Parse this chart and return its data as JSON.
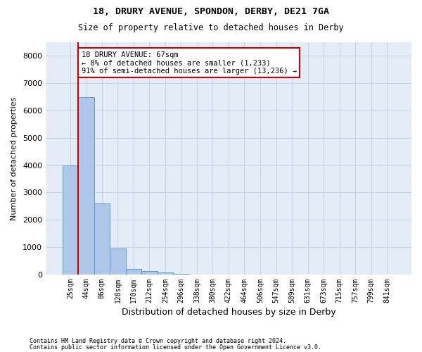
{
  "title1": "18, DRURY AVENUE, SPONDON, DERBY, DE21 7GA",
  "title2": "Size of property relative to detached houses in Derby",
  "xlabel": "Distribution of detached houses by size in Derby",
  "ylabel": "Number of detached properties",
  "footer1": "Contains HM Land Registry data © Crown copyright and database right 2024.",
  "footer2": "Contains public sector information licensed under the Open Government Licence v3.0.",
  "bin_labels": [
    "25sqm",
    "44sqm",
    "86sqm",
    "128sqm",
    "170sqm",
    "212sqm",
    "254sqm",
    "296sqm",
    "338sqm",
    "380sqm",
    "422sqm",
    "464sqm",
    "506sqm",
    "547sqm",
    "589sqm",
    "631sqm",
    "673sqm",
    "715sqm",
    "757sqm",
    "799sqm",
    "841sqm"
  ],
  "bar_values": [
    4000,
    6500,
    2600,
    950,
    200,
    130,
    80,
    30,
    0,
    0,
    0,
    0,
    0,
    0,
    0,
    0,
    0,
    0,
    0,
    0,
    0
  ],
  "bar_color": "#aec6e8",
  "bar_edge_color": "#5b9bd5",
  "grid_color": "#c8d4e8",
  "background_color": "#e4ecf7",
  "vline_color": "#cc0000",
  "vline_x_pos": 0.5,
  "annotation_line1": "18 DRURY AVENUE: 67sqm",
  "annotation_line2": "← 8% of detached houses are smaller (1,233)",
  "annotation_line3": "91% of semi-detached houses are larger (13,236) →",
  "annotation_box_color": "#cc0000",
  "ylim": [
    0,
    8500
  ],
  "yticks": [
    0,
    1000,
    2000,
    3000,
    4000,
    5000,
    6000,
    7000,
    8000
  ]
}
